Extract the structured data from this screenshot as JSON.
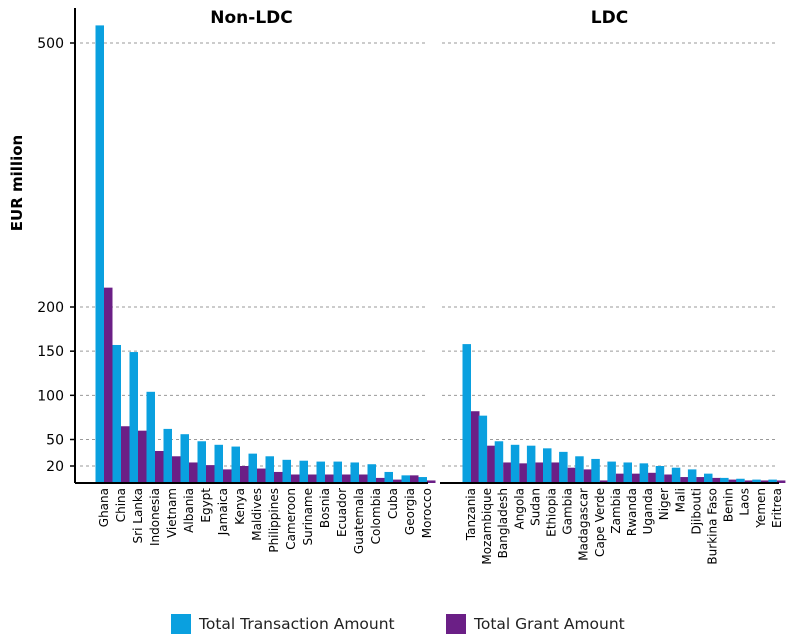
{
  "chart_data": {
    "type": "bar",
    "ylabel": "EUR million",
    "yticks": [
      20,
      50,
      100,
      150,
      200,
      500
    ],
    "grid": true,
    "legend_position": "bottom",
    "series_names": [
      "Total Transaction Amount",
      "Total Grant Amount"
    ],
    "colors": {
      "transaction": "#0aa0df",
      "grant": "#6b1f86"
    },
    "panels": [
      {
        "title": "Non-LDC",
        "categories": [
          "Ghana",
          "China",
          "Sri Lanka",
          "Indonesia",
          "Vietnam",
          "Albania",
          "Egypt",
          "Jamaica",
          "Kenya",
          "Maldives",
          "Philippines",
          "Cameroon",
          "Suriname",
          "Bosnia",
          "Ecuador",
          "Guatemala",
          "Colombia",
          "Cuba",
          "Georgia",
          "Morocco"
        ],
        "series": [
          {
            "name": "Total Transaction Amount",
            "values": [
              520,
              157,
              149,
              104,
              62,
              56,
              48,
              44,
              42,
              34,
              31,
              27,
              26,
              25,
              25,
              24,
              22,
              13,
              9,
              7
            ]
          },
          {
            "name": "Total Grant Amount",
            "values": [
              222,
              65,
              60,
              37,
              31,
              24,
              21,
              16,
              20,
              17,
              13,
              10,
              10,
              10,
              10,
              10,
              6,
              4,
              9,
              3
            ]
          }
        ]
      },
      {
        "title": "LDC",
        "categories": [
          "Tanzania",
          "Mozambique",
          "Bangladesh",
          "Angola",
          "Sudan",
          "Ethiopia",
          "Gambia",
          "Madagascar",
          "Cape Verde",
          "Zambia",
          "Rwanda",
          "Uganda",
          "Niger",
          "Mali",
          "Djibouti",
          "Burkina Faso",
          "Benin",
          "Laos",
          "Yemen",
          "Eritrea"
        ],
        "series": [
          {
            "name": "Total Transaction Amount",
            "values": [
              158,
              77,
              48,
              44,
              43,
              40,
              36,
              31,
              28,
              25,
              24,
              23,
              20,
              18,
              16,
              11,
              6,
              5,
              4,
              4
            ]
          },
          {
            "name": "Total Grant Amount",
            "values": [
              82,
              43,
              24,
              23,
              24,
              24,
              18,
              16,
              3,
              11,
              11,
              12,
              10,
              7,
              7,
              6,
              4,
              3,
              3,
              3
            ]
          }
        ]
      }
    ]
  }
}
